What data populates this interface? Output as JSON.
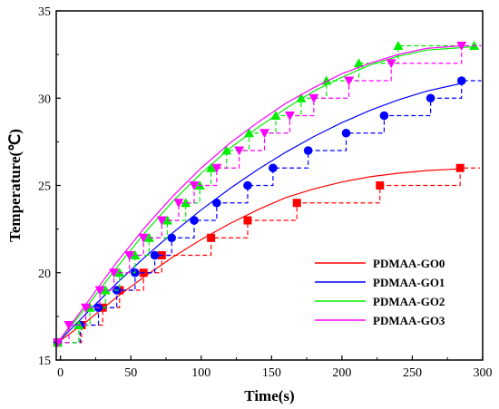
{
  "chart_data": {
    "type": "line",
    "xlabel": "Time(s)",
    "ylabel": "Temperature(℃)",
    "xlim": [
      -3,
      300
    ],
    "ylim": [
      15,
      35
    ],
    "x_ticks": [
      0,
      50,
      100,
      150,
      200,
      250,
      300
    ],
    "y_ticks": [
      15,
      20,
      25,
      30,
      35
    ],
    "x_tick_labels": [
      "0",
      "50",
      "100",
      "150",
      "200",
      "250",
      "300"
    ],
    "y_tick_labels": [
      "15",
      "20",
      "25",
      "30",
      "35"
    ],
    "grid": false,
    "legend_position": "lower-right",
    "series": [
      {
        "name": "PDMAA-GO0",
        "color": "#ff0000",
        "marker": "square",
        "points": [
          [
            -2,
            16
          ],
          [
            15,
            17
          ],
          [
            30,
            18
          ],
          [
            42,
            19
          ],
          [
            59,
            20
          ],
          [
            72,
            21
          ],
          [
            107,
            22
          ],
          [
            133,
            23
          ],
          [
            168,
            24
          ],
          [
            227,
            25
          ],
          [
            284,
            26
          ]
        ],
        "fit": [
          [
            -2,
            16
          ],
          [
            20,
            17.3
          ],
          [
            40,
            18.6
          ],
          [
            60,
            19.8
          ],
          [
            80,
            20.9
          ],
          [
            100,
            21.9
          ],
          [
            120,
            22.8
          ],
          [
            140,
            23.6
          ],
          [
            160,
            24.3
          ],
          [
            180,
            24.8
          ],
          [
            200,
            25.2
          ],
          [
            220,
            25.5
          ],
          [
            240,
            25.7
          ],
          [
            260,
            25.85
          ],
          [
            284,
            25.95
          ]
        ]
      },
      {
        "name": "PDMAA-GO1",
        "color": "#0000ff",
        "marker": "circle",
        "points": [
          [
            -2,
            16
          ],
          [
            14,
            17
          ],
          [
            27,
            18
          ],
          [
            40,
            19
          ],
          [
            53,
            20
          ],
          [
            67,
            21
          ],
          [
            79,
            22
          ],
          [
            95,
            23
          ],
          [
            111,
            24
          ],
          [
            133,
            25
          ],
          [
            151,
            26
          ],
          [
            176,
            27
          ],
          [
            203,
            28
          ],
          [
            230,
            29
          ],
          [
            263,
            30
          ],
          [
            285,
            31
          ]
        ],
        "fit": [
          [
            -2,
            16
          ],
          [
            20,
            17.8
          ],
          [
            40,
            19.4
          ],
          [
            60,
            20.9
          ],
          [
            80,
            22.3
          ],
          [
            100,
            23.6
          ],
          [
            120,
            24.8
          ],
          [
            140,
            25.9
          ],
          [
            160,
            26.9
          ],
          [
            180,
            27.8
          ],
          [
            200,
            28.6
          ],
          [
            220,
            29.3
          ],
          [
            240,
            29.9
          ],
          [
            260,
            30.4
          ],
          [
            285,
            30.85
          ]
        ]
      },
      {
        "name": "PDMAA-GO2",
        "color": "#00ee00",
        "marker": "triangle-up",
        "points": [
          [
            -2,
            16
          ],
          [
            13,
            17
          ],
          [
            21,
            18
          ],
          [
            32,
            19
          ],
          [
            42,
            20
          ],
          [
            53,
            21
          ],
          [
            63,
            22
          ],
          [
            76,
            23
          ],
          [
            89,
            24
          ],
          [
            99,
            25
          ],
          [
            107,
            26
          ],
          [
            118,
            27
          ],
          [
            134,
            28
          ],
          [
            153,
            29
          ],
          [
            171,
            30
          ],
          [
            189,
            31
          ],
          [
            212,
            32
          ],
          [
            240,
            33
          ],
          [
            294,
            33
          ]
        ],
        "fit": [
          [
            -2,
            16
          ],
          [
            20,
            18.2
          ],
          [
            40,
            20.3
          ],
          [
            60,
            22.3
          ],
          [
            80,
            24.1
          ],
          [
            100,
            25.7
          ],
          [
            120,
            27.1
          ],
          [
            140,
            28.3
          ],
          [
            160,
            29.4
          ],
          [
            180,
            30.4
          ],
          [
            200,
            31.2
          ],
          [
            220,
            31.9
          ],
          [
            240,
            32.4
          ],
          [
            260,
            32.75
          ],
          [
            294,
            32.95
          ]
        ]
      },
      {
        "name": "PDMAA-GO3",
        "color": "#ff00ff",
        "marker": "triangle-down",
        "points": [
          [
            -2,
            16
          ],
          [
            6,
            17
          ],
          [
            18,
            18
          ],
          [
            28,
            19
          ],
          [
            38,
            20
          ],
          [
            49,
            21
          ],
          [
            59,
            22
          ],
          [
            72,
            23
          ],
          [
            84,
            24
          ],
          [
            95,
            25
          ],
          [
            111,
            26
          ],
          [
            127,
            27
          ],
          [
            145,
            28
          ],
          [
            163,
            29
          ],
          [
            180,
            30
          ],
          [
            205,
            31
          ],
          [
            235,
            32
          ],
          [
            285,
            33
          ]
        ],
        "fit": [
          [
            -2,
            16
          ],
          [
            20,
            18.4
          ],
          [
            40,
            20.6
          ],
          [
            60,
            22.6
          ],
          [
            80,
            24.4
          ],
          [
            100,
            26
          ],
          [
            120,
            27.4
          ],
          [
            140,
            28.6
          ],
          [
            160,
            29.7
          ],
          [
            180,
            30.6
          ],
          [
            200,
            31.4
          ],
          [
            220,
            32
          ],
          [
            240,
            32.5
          ],
          [
            260,
            32.85
          ],
          [
            285,
            33
          ]
        ]
      }
    ]
  }
}
